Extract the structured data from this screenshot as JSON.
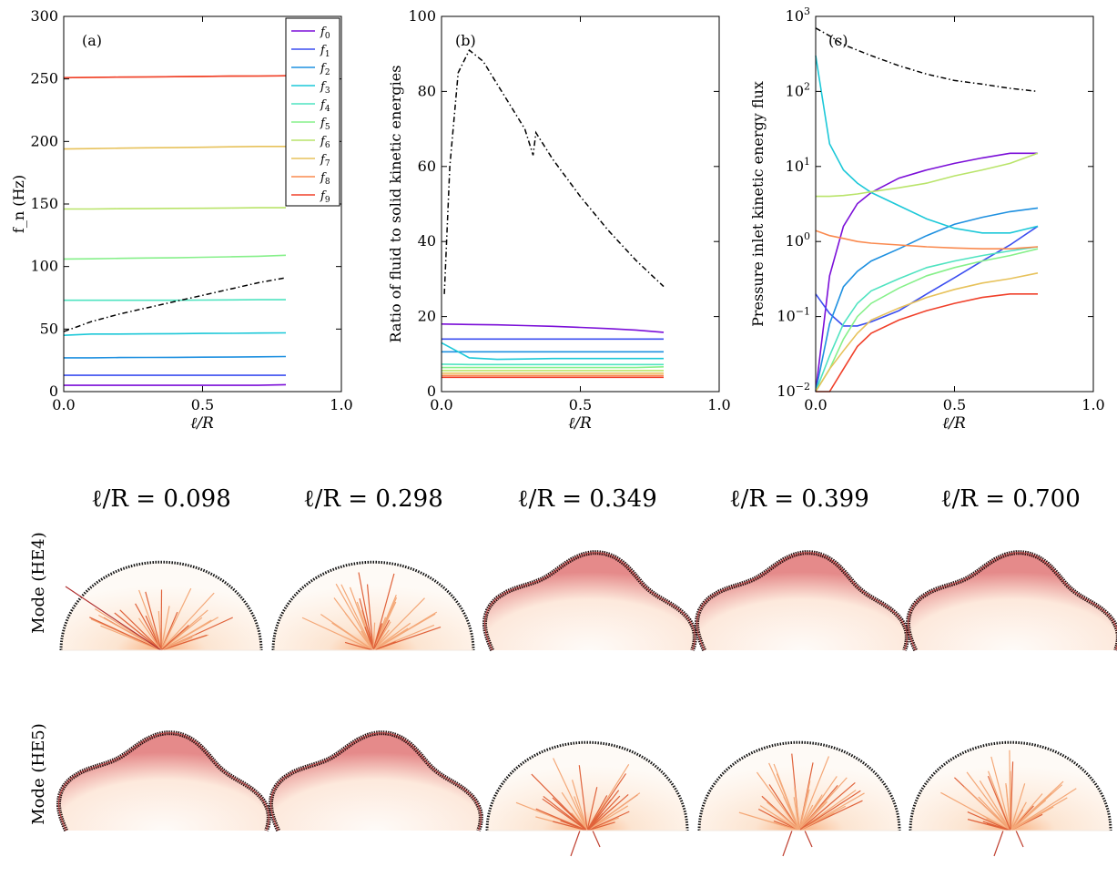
{
  "figure": {
    "panels": [
      "(a)",
      "(b)",
      "(c)"
    ],
    "case_labels": [
      "ℓ/R = 0.098",
      "ℓ/R = 0.298",
      "ℓ/R = 0.349",
      "ℓ/R = 0.399",
      "ℓ/R = 0.700"
    ],
    "row_labels": [
      "Mode (HE4)",
      "Mode (HE5)"
    ],
    "mode_rows": [
      [
        "bulge",
        "bulge",
        "lobed",
        "lobed",
        "lobed"
      ],
      [
        "lobed",
        "lobed",
        "bulge",
        "bulge",
        "bulge"
      ]
    ],
    "series_colors": [
      "#7b0fd8",
      "#3b4ef0",
      "#1e90e0",
      "#1cc8d8",
      "#4fe3c0",
      "#86f08a",
      "#b9e46a",
      "#e7c25b",
      "#fa8a4f",
      "#f0402a"
    ]
  },
  "chart_data": [
    {
      "type": "line",
      "panel": "(a)",
      "xlabel": "ℓ/R",
      "ylabel": "f_n (Hz)",
      "xlim": [
        0,
        1
      ],
      "ylim": [
        0,
        300
      ],
      "xticks": [
        "0.0",
        "0.5",
        "1.0"
      ],
      "yticks": [
        "0",
        "50",
        "100",
        "150",
        "200",
        "250",
        "300"
      ],
      "legend": {
        "placement": "top-right",
        "entries": [
          "f0",
          "f1",
          "f2",
          "f3",
          "f4",
          "f5",
          "f6",
          "f7",
          "f8",
          "f9"
        ]
      },
      "x": [
        0.0,
        0.1,
        0.2,
        0.3,
        0.4,
        0.5,
        0.6,
        0.7,
        0.8
      ],
      "series": [
        {
          "values": [
            5,
            5,
            5,
            5,
            5,
            5,
            5,
            5,
            5.5
          ]
        },
        {
          "values": [
            13,
            13,
            13,
            13,
            13,
            13,
            13,
            13,
            13
          ]
        },
        {
          "values": [
            27,
            27,
            27.2,
            27.3,
            27.4,
            27.5,
            27.6,
            27.8,
            28
          ]
        },
        {
          "values": [
            45,
            46,
            46,
            46.2,
            46.3,
            46.5,
            46.6,
            46.8,
            47
          ]
        },
        {
          "values": [
            73,
            73,
            73,
            73,
            73,
            73.2,
            73.3,
            73.5,
            73.5
          ]
        },
        {
          "values": [
            106,
            106.2,
            106.5,
            106.8,
            107,
            107.4,
            107.8,
            108.2,
            109
          ]
        },
        {
          "values": [
            146,
            146,
            146.2,
            146.3,
            146.5,
            146.6,
            146.8,
            147,
            147
          ]
        },
        {
          "values": [
            194,
            194.3,
            194.6,
            194.9,
            195.1,
            195.4,
            195.7,
            196,
            196
          ]
        },
        {
          "values": [
            251,
            251.2,
            251.4,
            251.6,
            251.8,
            252,
            252.2,
            252.3,
            252.5
          ]
        },
        {
          "values": [
            251,
            251.2,
            251.4,
            251.6,
            251.8,
            252,
            252.2,
            252.3,
            252.5
          ]
        }
      ],
      "dashed": {
        "x": [
          0.0,
          0.1,
          0.2,
          0.3,
          0.4,
          0.5,
          0.6,
          0.7,
          0.8
        ],
        "values": [
          48,
          56,
          62,
          67,
          72,
          77,
          82,
          87,
          91
        ]
      }
    },
    {
      "type": "line",
      "panel": "(b)",
      "xlabel": "ℓ/R",
      "ylabel": "Ratio of fluid to solid kinetic energies",
      "xlim": [
        0,
        1
      ],
      "ylim": [
        0,
        100
      ],
      "xticks": [
        "0.0",
        "0.5",
        "1.0"
      ],
      "yticks": [
        "0",
        "20",
        "40",
        "60",
        "80",
        "100"
      ],
      "x": [
        0.0,
        0.1,
        0.2,
        0.3,
        0.4,
        0.5,
        0.6,
        0.7,
        0.8
      ],
      "series": [
        {
          "values": [
            18,
            17.9,
            17.8,
            17.6,
            17.4,
            17.1,
            16.8,
            16.4,
            15.8
          ]
        },
        {
          "values": [
            14,
            14,
            14,
            14,
            14,
            14,
            14,
            14,
            14
          ]
        },
        {
          "values": [
            10.6,
            10.6,
            10.6,
            10.6,
            10.6,
            10.6,
            10.6,
            10.6,
            10.6
          ]
        },
        {
          "values": [
            13,
            9,
            8.6,
            8.7,
            8.8,
            8.8,
            8.8,
            8.8,
            8.8
          ]
        },
        {
          "values": [
            7.3,
            7.2,
            7.2,
            7.2,
            7.2,
            7.2,
            7.2,
            7.2,
            7.2
          ]
        },
        {
          "values": [
            6.4,
            6.4,
            6.4,
            6.4,
            6.4,
            6.4,
            6.4,
            6.4,
            6.6
          ]
        },
        {
          "values": [
            5.6,
            5.6,
            5.6,
            5.6,
            5.6,
            5.6,
            5.6,
            5.6,
            5.6
          ]
        },
        {
          "values": [
            4.9,
            4.9,
            4.9,
            4.9,
            4.9,
            4.9,
            4.9,
            4.9,
            4.9
          ]
        },
        {
          "values": [
            4.3,
            4.3,
            4.3,
            4.3,
            4.3,
            4.3,
            4.3,
            4.3,
            4.3
          ]
        },
        {
          "values": [
            3.8,
            3.8,
            3.8,
            3.8,
            3.8,
            3.8,
            3.8,
            3.8,
            3.8
          ]
        }
      ],
      "dashed": {
        "x": [
          0.01,
          0.03,
          0.06,
          0.1,
          0.15,
          0.2,
          0.25,
          0.3,
          0.33,
          0.34,
          0.4,
          0.5,
          0.6,
          0.7,
          0.8
        ],
        "values": [
          26,
          60,
          85,
          91,
          88,
          82,
          76,
          70,
          63,
          69,
          62,
          52,
          43,
          35,
          28
        ]
      }
    },
    {
      "type": "line",
      "panel": "(c)",
      "xlabel": "ℓ/R",
      "ylabel": "Pressure inlet kinetic energy flux",
      "xlim": [
        0,
        1
      ],
      "ylim": [
        0.01,
        1000
      ],
      "yscale": "log",
      "xticks": [
        "0.0",
        "0.5",
        "1.0"
      ],
      "yticks": [
        "10^-2",
        "10^-1",
        "10^0",
        "10^1",
        "10^2",
        "10^3"
      ],
      "x": [
        0.0,
        0.05,
        0.1,
        0.15,
        0.2,
        0.3,
        0.4,
        0.5,
        0.6,
        0.7,
        0.8
      ],
      "series": [
        {
          "values": [
            0.01,
            0.35,
            1.6,
            3.2,
            4.5,
            7,
            9,
            11,
            13,
            15,
            15
          ]
        },
        {
          "values": [
            0.2,
            0.11,
            0.075,
            0.075,
            0.085,
            0.12,
            0.2,
            0.33,
            0.55,
            0.9,
            1.6
          ]
        },
        {
          "values": [
            0.01,
            0.08,
            0.25,
            0.4,
            0.55,
            0.8,
            1.2,
            1.7,
            2.1,
            2.5,
            2.8
          ]
        },
        {
          "values": [
            300,
            20,
            9,
            6,
            4.5,
            3,
            2,
            1.5,
            1.3,
            1.3,
            1.6
          ]
        },
        {
          "values": [
            0.01,
            0.03,
            0.08,
            0.15,
            0.22,
            0.32,
            0.45,
            0.55,
            0.65,
            0.75,
            0.85
          ]
        },
        {
          "values": [
            0.01,
            0.02,
            0.05,
            0.1,
            0.15,
            0.24,
            0.35,
            0.45,
            0.55,
            0.65,
            0.8
          ]
        },
        {
          "values": [
            4,
            4,
            4.1,
            4.3,
            4.6,
            5.2,
            6,
            7.5,
            9,
            11,
            15
          ]
        },
        {
          "values": [
            0.01,
            0.02,
            0.035,
            0.06,
            0.09,
            0.13,
            0.18,
            0.23,
            0.28,
            0.32,
            0.38
          ]
        },
        {
          "values": [
            1.4,
            1.2,
            1.1,
            1.0,
            0.95,
            0.9,
            0.85,
            0.82,
            0.8,
            0.8,
            0.85
          ]
        },
        {
          "values": [
            0.01,
            0.01,
            0.02,
            0.04,
            0.06,
            0.09,
            0.12,
            0.15,
            0.18,
            0.2,
            0.2
          ]
        }
      ],
      "dashed": {
        "x": [
          0.0,
          0.05,
          0.1,
          0.2,
          0.3,
          0.4,
          0.5,
          0.6,
          0.7,
          0.8
        ],
        "values": [
          700,
          550,
          420,
          300,
          220,
          170,
          140,
          125,
          110,
          100
        ]
      }
    }
  ]
}
